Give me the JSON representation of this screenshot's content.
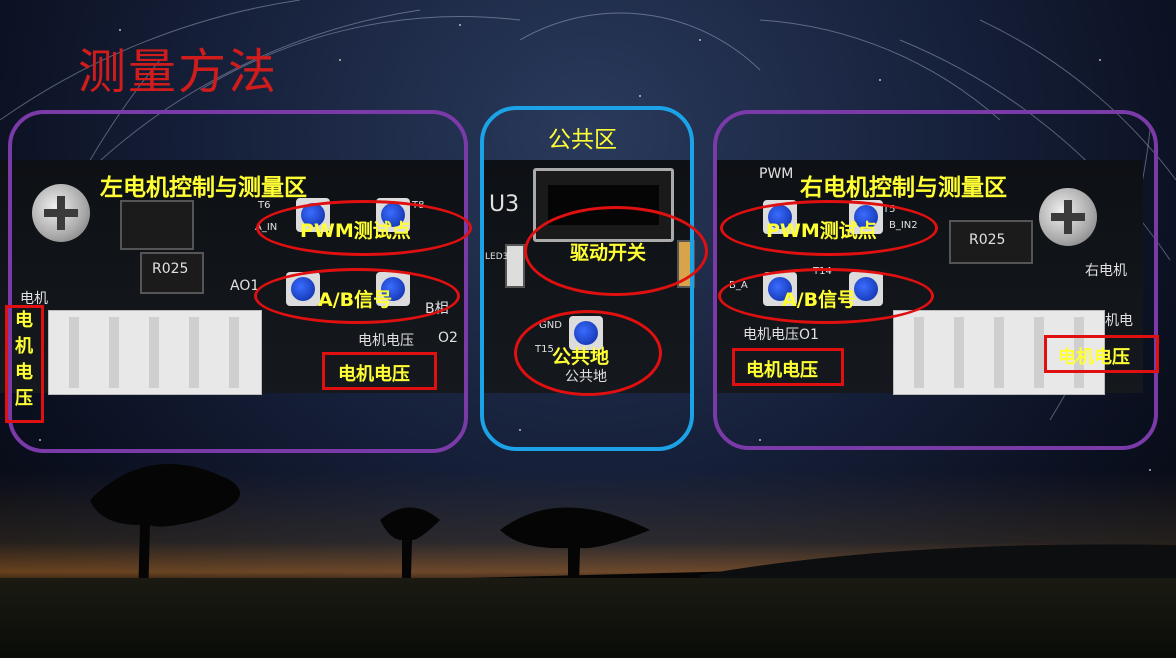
{
  "title": "测量方法",
  "left_zone": {
    "title": "左电机控制与测量区",
    "pwm_label": "PWM测试点",
    "ab_label": "A/B信号",
    "motor_voltage_label": "电机电压",
    "side_motor_voltage": [
      "电",
      "机",
      "电",
      "压"
    ],
    "pcb_texts": [
      "R025",
      "AO1",
      "O2",
      "电机电压",
      "B相",
      "A_IN",
      "电机",
      "T6",
      "T8"
    ]
  },
  "common_zone": {
    "title": "公共区",
    "drive_switch_label": "驱动开关",
    "ground_label": "公共地",
    "pcb_texts": [
      "U3",
      "GND",
      "T15",
      "公共地",
      "LED3"
    ]
  },
  "right_zone": {
    "title": "右电机控制与测量区",
    "pwm_label": "PWM测试点",
    "ab_label": "A/B信号",
    "motor_voltage_label": "电机电压",
    "side_motor_voltage_label": "电机电压",
    "pcb_texts": [
      "PWM",
      "R025",
      "右电机",
      "电机电压O1",
      "T5",
      "B_IN2",
      "T14",
      "B_A",
      "电机电压"
    ]
  },
  "colors": {
    "title": "#d11c1c",
    "label": "#ffff33",
    "highlight": "#e01010",
    "zone_side": "#7a3aa8",
    "zone_common": "#1ca2e6"
  }
}
